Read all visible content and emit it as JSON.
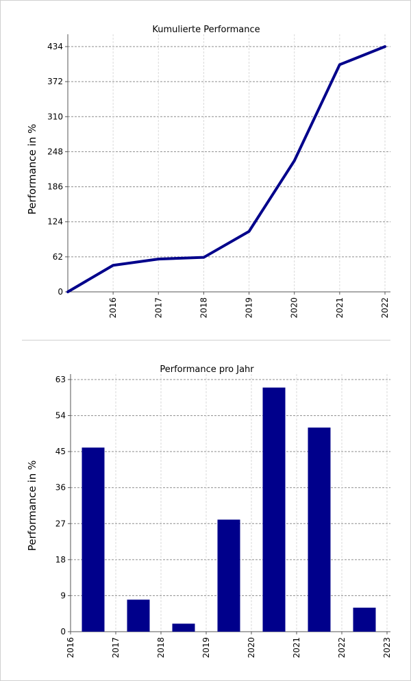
{
  "chart_data": [
    {
      "type": "line",
      "title": "Kumulierte Performance",
      "ylabel": "Performance in %",
      "xlabel": "",
      "x": [
        2015,
        2016,
        2017,
        2018,
        2019,
        2020,
        2021,
        2022
      ],
      "x_tick_labels": [
        "2016",
        "2017",
        "2018",
        "2019",
        "2020",
        "2021",
        "2022"
      ],
      "y_ticks": [
        0,
        62,
        124,
        186,
        248,
        310,
        372,
        434
      ],
      "ylim": [
        0,
        434
      ],
      "series": [
        {
          "values": [
            0,
            47,
            58,
            61,
            107,
            232,
            402,
            434
          ]
        }
      ],
      "grid": true,
      "color": "#00008b"
    },
    {
      "type": "bar",
      "title": "Performance pro Jahr",
      "ylabel": "Performance in %",
      "xlabel": "",
      "categories": [
        "2016",
        "2017",
        "2018",
        "2019",
        "2020",
        "2021",
        "2022"
      ],
      "x_tick_labels": [
        "2016",
        "2017",
        "2018",
        "2019",
        "2020",
        "2021",
        "2022",
        "2023"
      ],
      "y_ticks": [
        0,
        9,
        18,
        27,
        36,
        45,
        54,
        63
      ],
      "ylim": [
        0,
        63
      ],
      "values": [
        46,
        8,
        2,
        28,
        61,
        51,
        6
      ],
      "grid": true,
      "color": "#00008b"
    }
  ]
}
